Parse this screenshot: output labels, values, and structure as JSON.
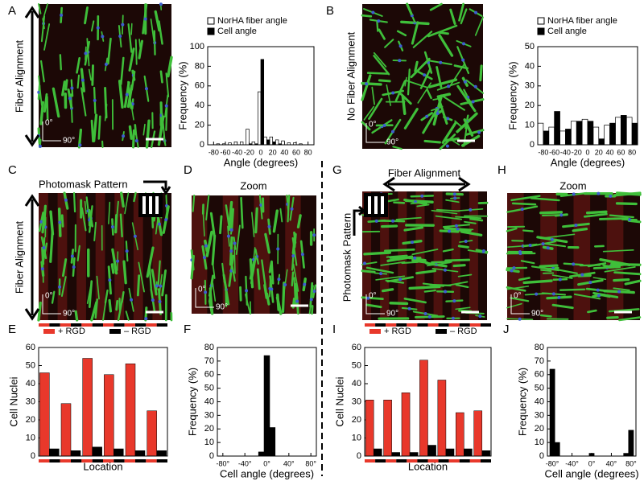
{
  "panel_labels": [
    "A",
    "B",
    "C",
    "D",
    "E",
    "F",
    "G",
    "H",
    "I",
    "J"
  ],
  "image_texts": {
    "a_axis": "Fiber Alignment",
    "b_axis": "No Fiber Alignment",
    "c_axis": "Fiber Alignment",
    "c_mask": "Photomask Pattern",
    "d_zoom": "Zoom",
    "g_axis": "Fiber Alignment",
    "g_mask": "Photomask Pattern",
    "h_zoom": "Zoom"
  },
  "orientation": {
    "zero": "0°",
    "ninety": "90°"
  },
  "chart_data": [
    {
      "type": "bar",
      "x": [
        -80,
        -70,
        -60,
        -50,
        -40,
        -30,
        -20,
        -10,
        0,
        10,
        20,
        30,
        40,
        50,
        60,
        70,
        80
      ],
      "series": [
        {
          "name": "NorHA fiber angle",
          "color": "#ffffff",
          "values": [
            0,
            1,
            1,
            2,
            3,
            3,
            16,
            3,
            54,
            8,
            8,
            5,
            4,
            2,
            2,
            1,
            0
          ]
        },
        {
          "name": "Cell angle",
          "color": "#000000",
          "values": [
            0,
            0,
            0,
            0,
            0,
            0,
            1,
            1,
            87,
            5,
            3,
            1,
            0,
            0,
            0,
            0,
            0
          ]
        }
      ],
      "xlim": [
        -90,
        90
      ],
      "xticks": [
        -80,
        -60,
        -40,
        -20,
        0,
        20,
        40,
        60,
        80
      ],
      "ylim": [
        0,
        100
      ],
      "yticks": [
        0,
        20,
        40,
        60,
        80,
        100
      ],
      "x_label": "Angle (degrees)",
      "y_label": "Frequency (%)",
      "grid": false
    },
    {
      "type": "bar",
      "x": [
        -80,
        -60,
        -40,
        -20,
        0,
        20,
        40,
        60,
        80
      ],
      "series": [
        {
          "name": "NorHA fiber angle",
          "color": "#ffffff",
          "values": [
            11,
            9,
            7,
            12,
            13,
            9,
            10,
            14,
            14
          ]
        },
        {
          "name": "Cell angle",
          "color": "#000000",
          "values": [
            7,
            17,
            8,
            12,
            12,
            3,
            11,
            15,
            11
          ]
        }
      ],
      "xlim": [
        -90,
        90
      ],
      "xticks": [
        -80,
        -60,
        -40,
        -20,
        0,
        20,
        40,
        60,
        80
      ],
      "ylim": [
        0,
        50
      ],
      "yticks": [
        0,
        10,
        20,
        30,
        40,
        50
      ],
      "x_label": "Angle (degrees)",
      "y_label": "Frequency (%)",
      "grid": false
    },
    {
      "type": "bar",
      "categories": [
        null,
        null,
        null,
        null,
        null,
        null
      ],
      "series": [
        {
          "name": "+ RGD",
          "color": "#e8382b",
          "values": [
            46,
            29,
            54,
            45,
            51,
            25
          ]
        },
        {
          "name": "– RGD",
          "color": "#000000",
          "values": [
            4,
            3,
            5,
            4,
            3,
            3
          ]
        }
      ],
      "ylim": [
        0,
        60
      ],
      "yticks": [
        0,
        10,
        20,
        30,
        40,
        50,
        60
      ],
      "x_label": "Location",
      "y_label": "Cell Nuclei",
      "grid": false
    },
    {
      "type": "bar",
      "x": [
        -10,
        0,
        10
      ],
      "values": [
        3,
        74,
        21
      ],
      "color": "#000000",
      "xlim": [
        -90,
        90
      ],
      "xticks": [
        {
          "value": -80,
          "label": "-80°"
        },
        {
          "value": -40,
          "label": "-40°"
        },
        {
          "value": 0,
          "label": "0°"
        },
        {
          "value": 40,
          "label": "40°"
        },
        {
          "value": 80,
          "label": "80°"
        }
      ],
      "ylim": [
        0,
        80
      ],
      "yticks": [
        0,
        10,
        20,
        30,
        40,
        50,
        60,
        70,
        80
      ],
      "x_label": "Cell angle (degrees)",
      "y_label": "Frequency (%)",
      "grid": false
    },
    {
      "type": "bar",
      "categories": [
        null,
        null,
        null,
        null,
        null,
        null,
        null
      ],
      "series": [
        {
          "name": "+ RGD",
          "color": "#e8382b",
          "values": [
            31,
            31,
            35,
            53,
            42,
            24,
            25
          ]
        },
        {
          "name": "– RGD",
          "color": "#000000",
          "values": [
            4,
            2,
            2,
            6,
            4,
            4,
            3
          ]
        }
      ],
      "ylim": [
        0,
        60
      ],
      "yticks": [
        0,
        10,
        20,
        30,
        40,
        50,
        60
      ],
      "x_label": "Location",
      "y_label": "Cell Nuclei",
      "grid": false
    },
    {
      "type": "bar",
      "x": [
        -80,
        -70,
        0,
        70,
        80
      ],
      "values": [
        64,
        10,
        2,
        2,
        19
      ],
      "color": "#000000",
      "xlim": [
        -90,
        90
      ],
      "xticks": [
        {
          "value": -80,
          "label": "-80°"
        },
        {
          "value": -40,
          "label": "-40°"
        },
        {
          "value": 0,
          "label": "0°"
        },
        {
          "value": 40,
          "label": "40°"
        },
        {
          "value": 80,
          "label": "80°"
        }
      ],
      "ylim": [
        0,
        80
      ],
      "yticks": [
        0,
        10,
        20,
        30,
        40,
        50,
        60,
        70,
        80
      ],
      "x_label": "Cell angle (degrees)",
      "y_label": "Frequency (%)",
      "grid": false
    }
  ]
}
